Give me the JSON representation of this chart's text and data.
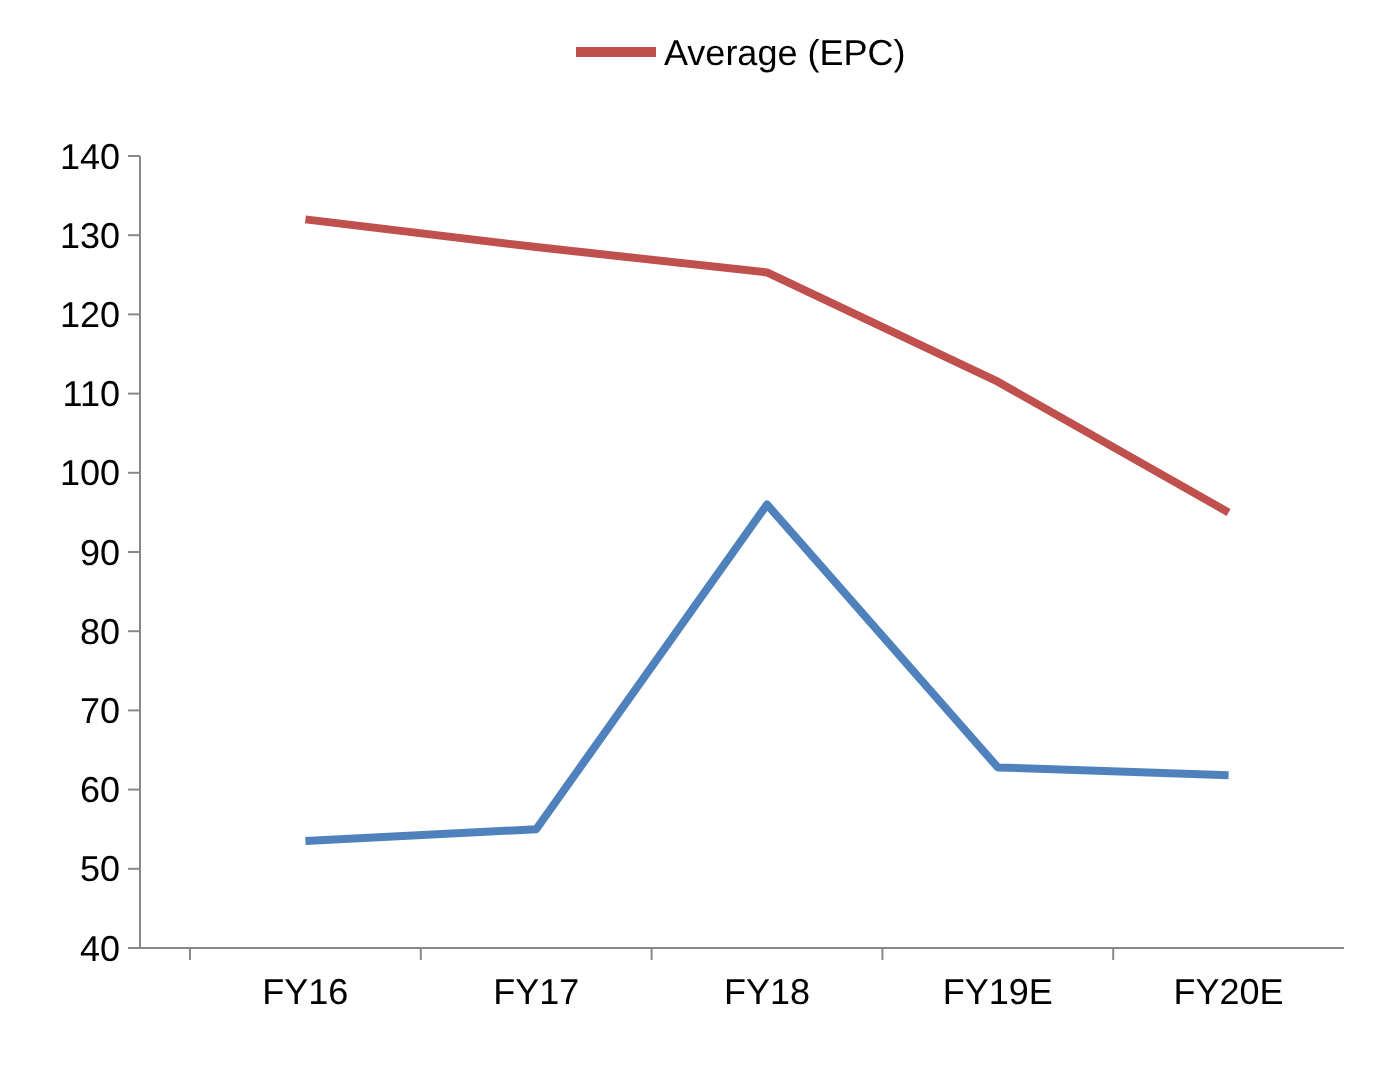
{
  "chart_data": {
    "type": "line",
    "categories": [
      "FY16",
      "FY17",
      "FY18",
      "FY19E",
      "FY20E"
    ],
    "series": [
      {
        "color": "#4f81bd",
        "values": [
          53.5,
          55,
          96,
          62.8,
          61.8
        ]
      },
      {
        "name": "Average (EPC)",
        "color": "#c0504d",
        "values": [
          132,
          128.5,
          125.3,
          111.5,
          95
        ]
      }
    ],
    "ylim": [
      40,
      140
    ],
    "yticks": [
      40,
      50,
      60,
      70,
      80,
      90,
      100,
      110,
      120,
      130,
      140
    ],
    "grid": false,
    "legend": "top",
    "marker": "none",
    "line_style": "solid"
  }
}
